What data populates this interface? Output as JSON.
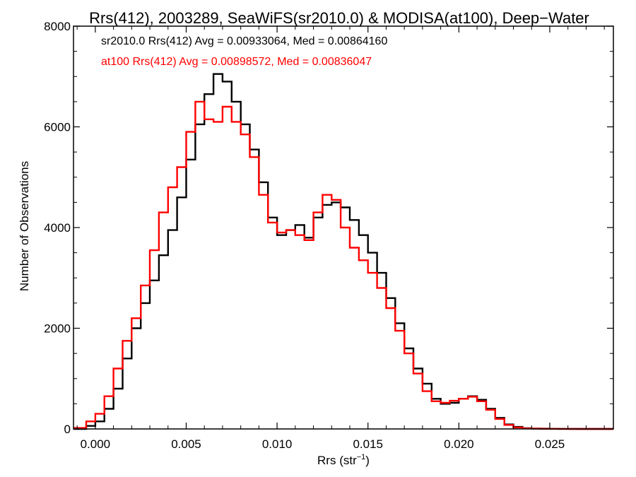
{
  "chart_data": {
    "type": "line",
    "step": true,
    "title": "Rrs(412), 2003289, SeaWiFS(sr2010.0) & MODISA(at100), Deep−Water",
    "xlabel_main": "Rrs (str",
    "xlabel_sup": "−1",
    "xlabel_close": ")",
    "ylabel": "Number of Observations",
    "xlim": [
      -0.0012,
      0.0285
    ],
    "ylim": [
      0,
      8000
    ],
    "x_ticks": [
      0.0,
      0.005,
      0.01,
      0.015,
      0.02,
      0.025
    ],
    "x_tick_labels": [
      "0.000",
      "0.005",
      "0.010",
      "0.015",
      "0.020",
      "0.025"
    ],
    "y_ticks": [
      0,
      2000,
      4000,
      6000,
      8000
    ],
    "y_tick_labels": [
      "0",
      "2000",
      "4000",
      "6000",
      "8000"
    ],
    "annotations": [
      {
        "text": "sr2010.0 Rrs(412) Avg = 0.00933064, Med = 0.00864160",
        "color": "#000000"
      },
      {
        "text": "at100 Rrs(412) Avg = 0.00898572, Med = 0.00836047",
        "color": "#ff0000"
      }
    ],
    "series": [
      {
        "color": "#000000",
        "x": [
          -0.0012,
          -0.0005,
          0.0,
          0.0005,
          0.001,
          0.0015,
          0.002,
          0.0025,
          0.003,
          0.0035,
          0.004,
          0.0045,
          0.005,
          0.0055,
          0.006,
          0.0065,
          0.007,
          0.0075,
          0.008,
          0.0085,
          0.009,
          0.0095,
          0.01,
          0.0105,
          0.011,
          0.0115,
          0.012,
          0.0125,
          0.013,
          0.0135,
          0.014,
          0.0145,
          0.015,
          0.0155,
          0.016,
          0.0165,
          0.017,
          0.0175,
          0.018,
          0.0185,
          0.019,
          0.0195,
          0.02,
          0.0205,
          0.021,
          0.0215,
          0.022,
          0.0225,
          0.023,
          0.0235,
          0.024,
          0.0245,
          0.025,
          0.0255,
          0.026,
          0.0265,
          0.027,
          0.0275,
          0.028,
          0.0285
        ],
        "y": [
          0,
          60,
          150,
          400,
          800,
          1400,
          2000,
          2500,
          2950,
          3450,
          3950,
          4600,
          5350,
          6050,
          6650,
          7050,
          6900,
          6500,
          6050,
          5550,
          4900,
          4200,
          3850,
          3950,
          4050,
          3800,
          4200,
          4450,
          4500,
          4400,
          4150,
          3850,
          3500,
          3100,
          2600,
          2100,
          1600,
          1200,
          900,
          600,
          500,
          520,
          600,
          650,
          580,
          400,
          220,
          90,
          40,
          15,
          8,
          5,
          3,
          2,
          1,
          0,
          0,
          0,
          0,
          0
        ]
      },
      {
        "color": "#ff0000",
        "x": [
          -0.0012,
          -0.0005,
          0.0,
          0.0005,
          0.001,
          0.0015,
          0.002,
          0.0025,
          0.003,
          0.0035,
          0.004,
          0.0045,
          0.005,
          0.0055,
          0.006,
          0.0065,
          0.007,
          0.0075,
          0.008,
          0.0085,
          0.009,
          0.0095,
          0.01,
          0.0105,
          0.011,
          0.0115,
          0.012,
          0.0125,
          0.013,
          0.0135,
          0.014,
          0.0145,
          0.015,
          0.0155,
          0.016,
          0.0165,
          0.017,
          0.0175,
          0.018,
          0.0185,
          0.019,
          0.0195,
          0.02,
          0.0205,
          0.021,
          0.0215,
          0.022,
          0.0225,
          0.023,
          0.0235,
          0.024,
          0.0245,
          0.025,
          0.0255,
          0.026,
          0.0265,
          0.027,
          0.0275,
          0.028,
          0.0285
        ],
        "y": [
          20,
          150,
          300,
          650,
          1200,
          1750,
          2200,
          2850,
          3550,
          4300,
          4800,
          5200,
          5900,
          6500,
          6150,
          6100,
          6400,
          6100,
          5850,
          5400,
          4650,
          4100,
          3900,
          3950,
          3850,
          3750,
          4300,
          4650,
          4550,
          4000,
          3600,
          3350,
          3100,
          2800,
          2400,
          1950,
          1500,
          1100,
          750,
          550,
          520,
          560,
          600,
          640,
          550,
          380,
          200,
          80,
          30,
          10,
          5,
          3,
          2,
          1,
          0,
          0,
          0,
          0,
          0,
          0
        ]
      }
    ]
  }
}
